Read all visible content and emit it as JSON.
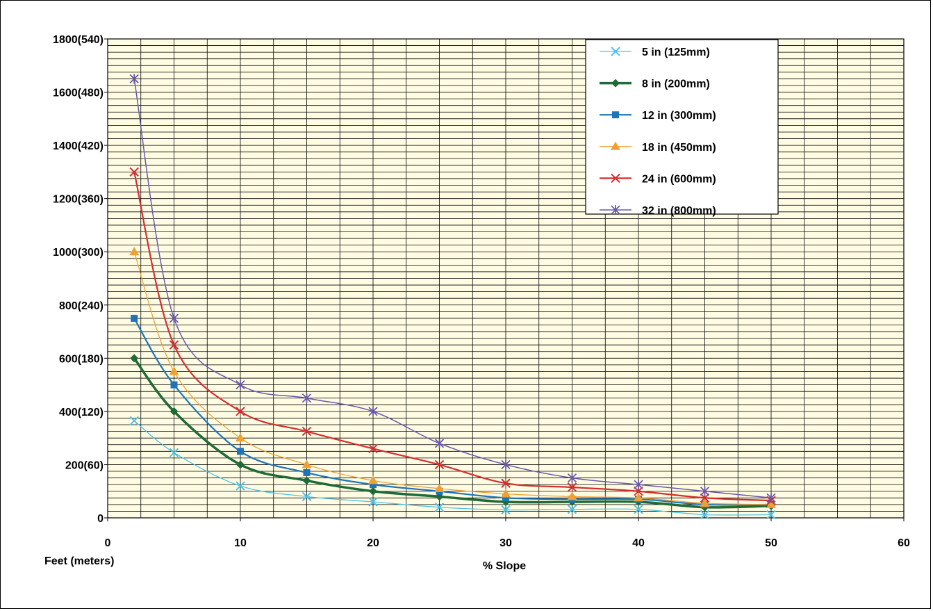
{
  "chart_data": {
    "type": "line",
    "title": "",
    "xlabel": "% Slope",
    "ylabel": "Feet (meters)",
    "xlim": [
      0,
      60
    ],
    "ylim": [
      0,
      1800
    ],
    "x_ticks": [
      {
        "value": 0,
        "label": "0"
      },
      {
        "value": 10,
        "label": "10"
      },
      {
        "value": 20,
        "label": "20"
      },
      {
        "value": 30,
        "label": "30"
      },
      {
        "value": 40,
        "label": "40"
      },
      {
        "value": 50,
        "label": "50"
      },
      {
        "value": 60,
        "label": "60"
      }
    ],
    "y_ticks": [
      {
        "value": 0,
        "label": "0"
      },
      {
        "value": 200,
        "label": "200(60)"
      },
      {
        "value": 400,
        "label": "400(120)"
      },
      {
        "value": 600,
        "label": "600(180)"
      },
      {
        "value": 800,
        "label": "800(240)"
      },
      {
        "value": 1000,
        "label": "1000(300)"
      },
      {
        "value": 1200,
        "label": "1200(360)"
      },
      {
        "value": 1400,
        "label": "1400(420)"
      },
      {
        "value": 1600,
        "label": "1600(480)"
      },
      {
        "value": 1800,
        "label": "1800(540)"
      }
    ],
    "grid": true,
    "legend_position": "top-right",
    "x": [
      2,
      5,
      10,
      15,
      20,
      25,
      30,
      35,
      40,
      45,
      50
    ],
    "series": [
      {
        "name": "5 in (125mm)",
        "color": "#4DC3E8",
        "marker": "x",
        "width": 1.3,
        "values": [
          365,
          245,
          120,
          80,
          60,
          40,
          30,
          32,
          32,
          12,
          12
        ]
      },
      {
        "name": "8 in (200mm)",
        "color": "#1E6B38",
        "marker": "diamond",
        "width": 3.5,
        "values": [
          600,
          400,
          200,
          140,
          100,
          80,
          60,
          60,
          60,
          40,
          45
        ]
      },
      {
        "name": "12 in (300mm)",
        "color": "#1C75B8",
        "marker": "square",
        "width": 2.2,
        "values": [
          750,
          500,
          250,
          170,
          125,
          100,
          75,
          70,
          70,
          50,
          50
        ]
      },
      {
        "name": "18 in (450mm)",
        "color": "#F0A033",
        "marker": "triangle",
        "width": 1.3,
        "values": [
          1000,
          550,
          300,
          200,
          140,
          110,
          90,
          80,
          75,
          55,
          50
        ]
      },
      {
        "name": "24 in (600mm)",
        "color": "#D62E2E",
        "marker": "x",
        "width": 2.2,
        "values": [
          1300,
          650,
          400,
          325,
          260,
          200,
          130,
          115,
          100,
          75,
          65
        ]
      },
      {
        "name": "32 in (800mm)",
        "color": "#6A58A8",
        "marker": "star",
        "width": 1.5,
        "values": [
          1650,
          750,
          500,
          450,
          400,
          280,
          200,
          150,
          125,
          100,
          75
        ]
      }
    ]
  },
  "colors": {
    "plot_background": "#FFFCE3",
    "grid_line": "#000000",
    "frame": "#000000"
  }
}
